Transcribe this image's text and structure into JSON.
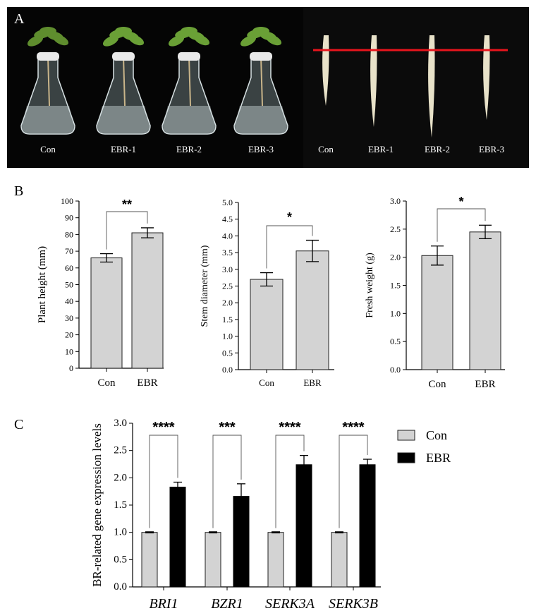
{
  "panel_labels": {
    "a": "A",
    "b": "B",
    "c": "C"
  },
  "photo": {
    "left_labels": [
      "Con",
      "EBR-1",
      "EBR-2",
      "EBR-3"
    ],
    "right_labels": [
      "Con",
      "EBR-1",
      "EBR-2",
      "EBR-3"
    ],
    "background": "#050505",
    "reference_line_color": "#e8141c"
  },
  "colors": {
    "con": "#d3d3d3",
    "ebr": "#000000"
  },
  "chart_data": [
    {
      "type": "bar",
      "categories": [
        "Con",
        "EBR"
      ],
      "values": [
        66,
        81
      ],
      "errors": [
        2.5,
        3
      ],
      "ylabel": "Plant height (mm)",
      "ylim": [
        0,
        100
      ],
      "yticks": [
        "0",
        "10",
        "20",
        "30",
        "40",
        "50",
        "60",
        "70",
        "80",
        "90",
        "100"
      ],
      "significance": "**",
      "grid": false
    },
    {
      "type": "bar",
      "categories": [
        "Con",
        "EBR"
      ],
      "values": [
        2.7,
        3.55
      ],
      "errors": [
        0.2,
        0.32
      ],
      "ylabel": "Stem diameter (mm)",
      "ylim": [
        0,
        5
      ],
      "yticks": [
        "0.0",
        "0.5",
        "1.0",
        "1.5",
        "2.0",
        "2.5",
        "3.0",
        "3.5",
        "4.0",
        "4.5",
        "5.0"
      ],
      "significance": "*",
      "grid": false
    },
    {
      "type": "bar",
      "categories": [
        "Con",
        "EBR"
      ],
      "values": [
        2.03,
        2.45
      ],
      "errors": [
        0.17,
        0.12
      ],
      "ylabel": "Fresh weight (g)",
      "ylim": [
        0,
        3
      ],
      "yticks": [
        "0.0",
        "0.5",
        "1.0",
        "1.5",
        "2.0",
        "2.5",
        "3.0"
      ],
      "significance": "*",
      "grid": false
    },
    {
      "type": "bar",
      "categories": [
        "BRI1",
        "BZR1",
        "SERK3A",
        "SERK3B"
      ],
      "series": [
        {
          "name": "Con",
          "values": [
            1.0,
            1.0,
            1.0,
            1.0
          ],
          "errors": [
            0.01,
            0.01,
            0.01,
            0.01
          ]
        },
        {
          "name": "EBR",
          "values": [
            1.83,
            1.66,
            2.24,
            2.24
          ],
          "errors": [
            0.09,
            0.23,
            0.17,
            0.1
          ]
        }
      ],
      "significance": [
        "****",
        "***",
        "****",
        "****"
      ],
      "ylabel": "BR-related gene expression levels",
      "ylim": [
        0,
        3
      ],
      "yticks": [
        "0.0",
        "0.5",
        "1.0",
        "1.5",
        "2.0",
        "2.5",
        "3.0"
      ],
      "legend": "right",
      "grid": false
    }
  ]
}
